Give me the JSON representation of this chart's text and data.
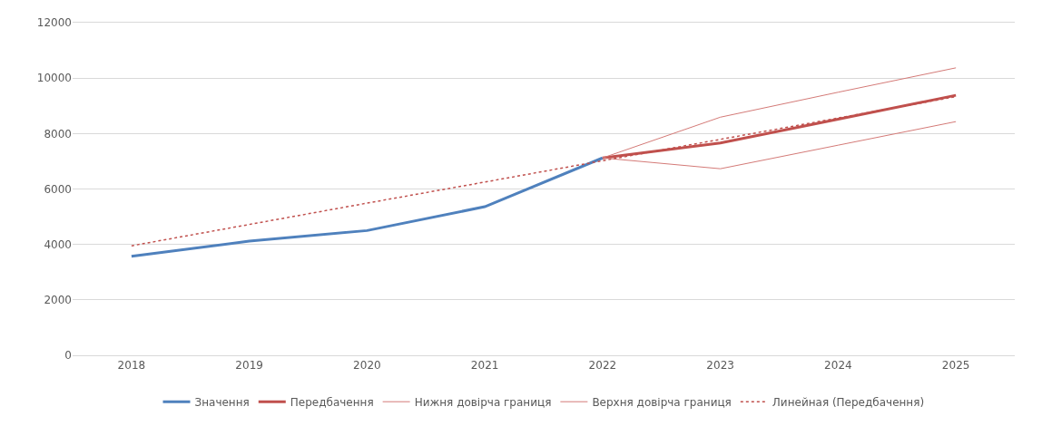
{
  "chart_data": {
    "type": "line",
    "categories": [
      "2018",
      "2019",
      "2020",
      "2021",
      "2022",
      "2023",
      "2024",
      "2025"
    ],
    "series": [
      {
        "name": "Значення",
        "color": "#4f81bd",
        "values": [
          3570,
          4120,
          4500,
          5360,
          7120,
          null,
          null,
          null
        ]
      },
      {
        "name": "Передбачення",
        "color": "#c0504d",
        "values": [
          null,
          null,
          null,
          null,
          7120,
          7660,
          8520,
          9380
        ]
      },
      {
        "name": "Нижня довірча границя",
        "color": "#d47a77",
        "values": [
          null,
          null,
          null,
          null,
          7120,
          6730,
          7580,
          8430
        ]
      },
      {
        "name": "Верхня довірча границя",
        "color": "#d47a77",
        "values": [
          null,
          null,
          null,
          null,
          7120,
          8590,
          9490,
          10370
        ]
      },
      {
        "name": "Линейная (Передбачення)",
        "color": "#c0504d",
        "line_style": "dotted",
        "values": [
          3950,
          4720,
          5490,
          6250,
          7020,
          7790,
          8560,
          9330
        ]
      }
    ],
    "ylim": [
      0,
      12000
    ],
    "yticks": [
      0,
      2000,
      4000,
      6000,
      8000,
      10000,
      12000
    ],
    "grid": "y",
    "legend": "bottom"
  }
}
